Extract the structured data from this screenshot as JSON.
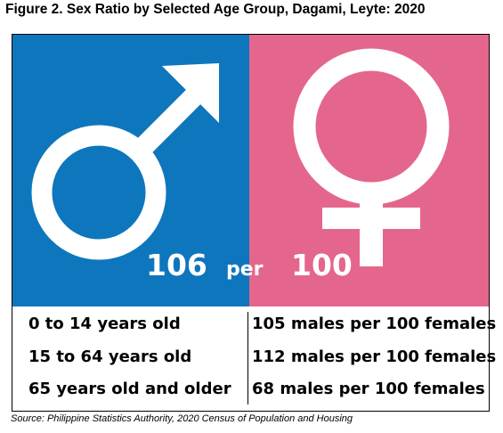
{
  "title": "Figure 2. Sex Ratio by Selected Age Group, Dagami, Leyte: 2020",
  "colors": {
    "male_panel": "#0e76bd",
    "female_panel": "#e4668c",
    "symbol": "#ffffff"
  },
  "icons": {
    "male": "male-symbol-icon",
    "female": "female-symbol-icon"
  },
  "overall_ratio": {
    "males": "106",
    "per": "per",
    "females": "100"
  },
  "rows": [
    {
      "age_group": "0 to 14 years old",
      "ratio": "105 males per 100 females"
    },
    {
      "age_group": "15 to 64 years old",
      "ratio": "112 males per 100 females"
    },
    {
      "age_group": "65 years old and older",
      "ratio": "68 males per 100 females"
    }
  ],
  "source": "Source: Philippine Statistics Authority, 2020 Census of Population and Housing"
}
